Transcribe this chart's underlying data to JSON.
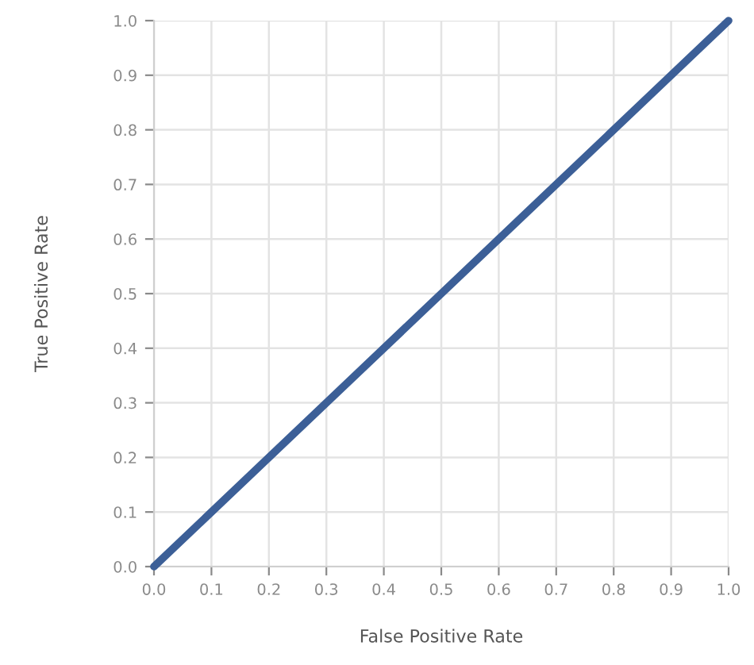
{
  "chart_data": {
    "type": "line",
    "xlabel": "False Positive Rate",
    "ylabel": "True Positive Rate",
    "x": [
      0.0,
      1.0
    ],
    "series": [
      {
        "color": "#3c5f97",
        "values": [
          0.0,
          1.0
        ]
      }
    ],
    "xlim": [
      0.0,
      1.0
    ],
    "ylim": [
      0.0,
      1.0
    ],
    "xticks": [
      {
        "value": 0.0,
        "label": "0.0"
      },
      {
        "value": 0.1,
        "label": "0.1"
      },
      {
        "value": 0.2,
        "label": "0.2"
      },
      {
        "value": 0.3,
        "label": "0.3"
      },
      {
        "value": 0.4,
        "label": "0.4"
      },
      {
        "value": 0.5,
        "label": "0.5"
      },
      {
        "value": 0.6,
        "label": "0.6"
      },
      {
        "value": 0.7,
        "label": "0.7"
      },
      {
        "value": 0.8,
        "label": "0.8"
      },
      {
        "value": 0.9,
        "label": "0.9"
      },
      {
        "value": 1.0,
        "label": "1.0"
      }
    ],
    "yticks": [
      {
        "value": 0.0,
        "label": "0.0"
      },
      {
        "value": 0.1,
        "label": "0.1"
      },
      {
        "value": 0.2,
        "label": "0.2"
      },
      {
        "value": 0.3,
        "label": "0.3"
      },
      {
        "value": 0.4,
        "label": "0.4"
      },
      {
        "value": 0.5,
        "label": "0.5"
      },
      {
        "value": 0.6,
        "label": "0.6"
      },
      {
        "value": 0.7,
        "label": "0.7"
      },
      {
        "value": 0.8,
        "label": "0.8"
      },
      {
        "value": 0.9,
        "label": "0.9"
      },
      {
        "value": 1.0,
        "label": "1.0"
      }
    ],
    "grid": true,
    "line_style": "solid"
  }
}
